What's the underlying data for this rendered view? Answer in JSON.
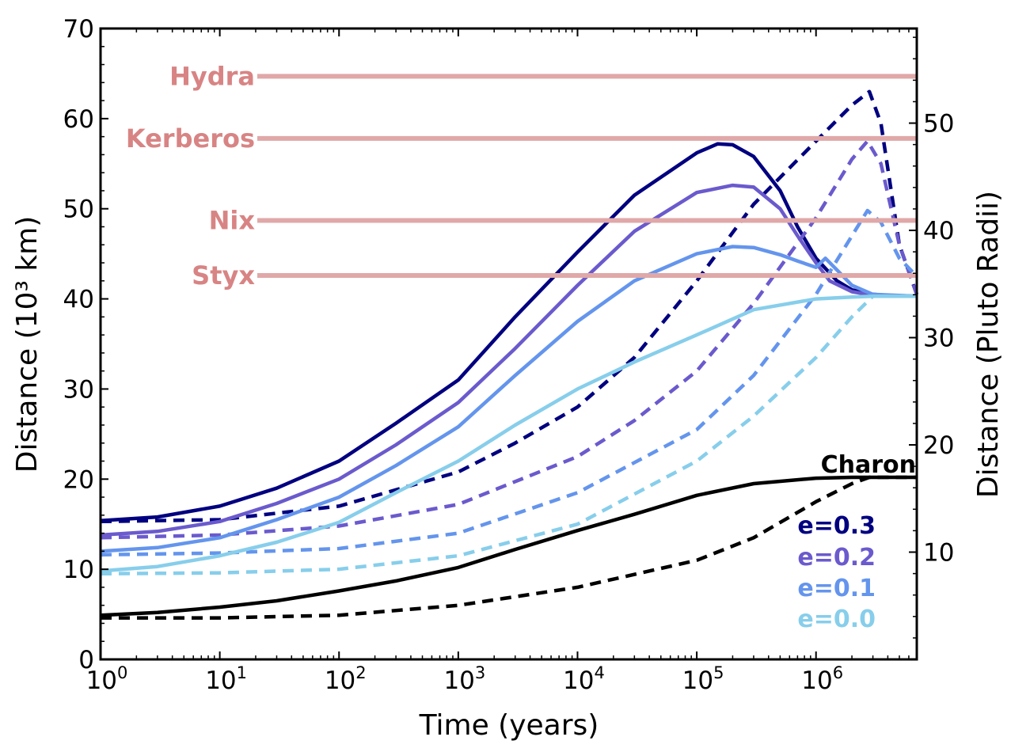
{
  "chart_data": {
    "type": "line",
    "title": "",
    "xlabel": "Time (years)",
    "ylabel": "Distance (10³ km)",
    "ylabel_right": "Distance (Pluto Radii)",
    "xscale": "log",
    "xlim": [
      1,
      7000000
    ],
    "ylim": [
      0,
      70
    ],
    "yticks": [
      "0",
      "10",
      "20",
      "30",
      "40",
      "50",
      "60",
      "70"
    ],
    "xticks": [
      {
        "base": "10",
        "exp": "0",
        "value": 1
      },
      {
        "base": "10",
        "exp": "1",
        "value": 10
      },
      {
        "base": "10",
        "exp": "2",
        "value": 100
      },
      {
        "base": "10",
        "exp": "3",
        "value": 1000
      },
      {
        "base": "10",
        "exp": "4",
        "value": 10000
      },
      {
        "base": "10",
        "exp": "5",
        "value": 100000
      },
      {
        "base": "10",
        "exp": "6",
        "value": 1000000
      }
    ],
    "right_yticks": [
      {
        "label": "10",
        "value": 11.9
      },
      {
        "label": "20",
        "value": 23.8
      },
      {
        "label": "30",
        "value": 35.7
      },
      {
        "label": "40",
        "value": 47.6
      },
      {
        "label": "50",
        "value": 59.5
      }
    ],
    "grid": false,
    "moons": [
      {
        "name": "Hydra",
        "distance": 64.7,
        "color": "#e0a8a8",
        "text_color": "#d88484"
      },
      {
        "name": "Kerberos",
        "distance": 57.8,
        "color": "#e0a8a8",
        "text_color": "#d88484"
      },
      {
        "name": "Nix",
        "distance": 48.7,
        "color": "#e0a8a8",
        "text_color": "#d88484"
      },
      {
        "name": "Styx",
        "distance": 42.6,
        "color": "#e0a8a8",
        "text_color": "#d88484"
      }
    ],
    "legend": [
      {
        "label": "Charon",
        "color": "#000000"
      },
      {
        "label": "e=0.3",
        "color": "#000080"
      },
      {
        "label": "e=0.2",
        "color": "#6a5acd"
      },
      {
        "label": "e=0.1",
        "color": "#6495ed"
      },
      {
        "label": "e=0.0",
        "color": "#87ceeb"
      }
    ],
    "legend_position": "bottom-right",
    "series": [
      {
        "group": "e=0.3",
        "style": "solid",
        "color": "#000080",
        "x": [
          1,
          3,
          10,
          30,
          100,
          300,
          1000,
          3000,
          10000,
          30000,
          100000,
          150000,
          200000,
          300000,
          500000,
          700000,
          1000000,
          1500000,
          2000000,
          3000000,
          5000000,
          7000000
        ],
        "y": [
          15.4,
          15.8,
          17.0,
          19.0,
          22.0,
          26.2,
          31.0,
          38.0,
          45.2,
          51.5,
          56.2,
          57.2,
          57.1,
          55.8,
          52.0,
          48.0,
          44.5,
          42.0,
          41.0,
          40.5,
          40.3,
          40.3
        ]
      },
      {
        "group": "e=0.3",
        "style": "dashed",
        "color": "#000080",
        "x": [
          1,
          10,
          100,
          1000,
          3000,
          10000,
          30000,
          100000,
          300000,
          1000000,
          2000000,
          2800000,
          3500000,
          5000000,
          7000000
        ],
        "y": [
          15.3,
          15.5,
          17.0,
          20.8,
          24.0,
          28.0,
          33.5,
          42.0,
          50.5,
          57.5,
          61.5,
          63.0,
          59.5,
          46.0,
          40.5
        ]
      },
      {
        "group": "e=0.2",
        "style": "solid",
        "color": "#6a5acd",
        "x": [
          1,
          3,
          10,
          30,
          100,
          300,
          1000,
          3000,
          10000,
          30000,
          100000,
          200000,
          300000,
          500000,
          700000,
          1000000,
          1300000,
          2000000,
          3000000,
          7000000
        ],
        "y": [
          13.8,
          14.2,
          15.3,
          17.3,
          20.0,
          23.8,
          28.5,
          34.5,
          41.5,
          47.5,
          51.8,
          52.6,
          52.4,
          50.0,
          47.0,
          44.0,
          42.0,
          40.8,
          40.4,
          40.3
        ]
      },
      {
        "group": "e=0.2",
        "style": "dashed",
        "color": "#6a5acd",
        "x": [
          1,
          10,
          100,
          1000,
          10000,
          30000,
          100000,
          300000,
          1000000,
          2000000,
          2700000,
          3500000,
          5000000,
          7000000
        ],
        "y": [
          13.5,
          13.8,
          14.8,
          17.2,
          22.5,
          26.5,
          32.0,
          39.5,
          49.0,
          55.5,
          57.5,
          55.0,
          46.0,
          40.5
        ]
      },
      {
        "group": "e=0.1",
        "style": "solid",
        "color": "#6495ed",
        "x": [
          1,
          3,
          10,
          30,
          100,
          300,
          1000,
          3000,
          10000,
          30000,
          100000,
          200000,
          300000,
          500000,
          700000,
          1000000,
          1200000,
          1500000,
          2000000,
          3000000,
          7000000
        ],
        "y": [
          12.0,
          12.4,
          13.5,
          15.5,
          18.0,
          21.5,
          25.8,
          31.5,
          37.5,
          42.0,
          45.0,
          45.8,
          45.7,
          44.9,
          44.2,
          43.5,
          44.5,
          43.2,
          41.5,
          40.5,
          40.3
        ]
      },
      {
        "group": "e=0.1",
        "style": "dashed",
        "color": "#6495ed",
        "x": [
          1,
          10,
          100,
          1000,
          10000,
          100000,
          300000,
          1000000,
          2000000,
          2700000,
          3500000,
          5000000,
          7000000
        ],
        "y": [
          11.6,
          11.8,
          12.3,
          14.0,
          18.5,
          25.5,
          31.5,
          40.5,
          47.0,
          49.8,
          48.5,
          44.5,
          42.5
        ]
      },
      {
        "group": "e=0.0",
        "style": "solid",
        "color": "#87ceeb",
        "x": [
          1,
          3,
          10,
          30,
          100,
          300,
          1000,
          3000,
          10000,
          30000,
          100000,
          300000,
          1000000,
          2000000,
          3000000,
          7000000
        ],
        "y": [
          9.8,
          10.3,
          11.5,
          13.0,
          15.2,
          18.5,
          22.0,
          26.0,
          30.0,
          33.0,
          36.0,
          38.8,
          40.0,
          40.2,
          40.3,
          40.3
        ]
      },
      {
        "group": "e=0.0",
        "style": "dashed",
        "color": "#87ceeb",
        "x": [
          1,
          10,
          100,
          1000,
          10000,
          100000,
          300000,
          1000000,
          2000000,
          3000000,
          7000000
        ],
        "y": [
          9.5,
          9.6,
          10.0,
          11.5,
          15.0,
          22.0,
          27.0,
          33.5,
          38.0,
          40.3,
          40.3
        ]
      },
      {
        "group": "Charon",
        "style": "solid",
        "color": "#000000",
        "x": [
          1,
          3,
          10,
          30,
          100,
          300,
          1000,
          3000,
          10000,
          30000,
          100000,
          300000,
          1000000,
          2000000,
          7000000
        ],
        "y": [
          4.9,
          5.2,
          5.8,
          6.5,
          7.6,
          8.7,
          10.2,
          12.2,
          14.3,
          16.1,
          18.2,
          19.5,
          20.1,
          20.2,
          20.2
        ]
      },
      {
        "group": "Charon",
        "style": "dashed",
        "color": "#000000",
        "x": [
          1,
          10,
          100,
          1000,
          10000,
          100000,
          300000,
          1000000,
          2000000,
          2800000,
          7000000
        ],
        "y": [
          4.6,
          4.6,
          4.9,
          6.0,
          8.0,
          11.0,
          13.5,
          17.5,
          19.5,
          20.2,
          20.2
        ]
      }
    ]
  }
}
